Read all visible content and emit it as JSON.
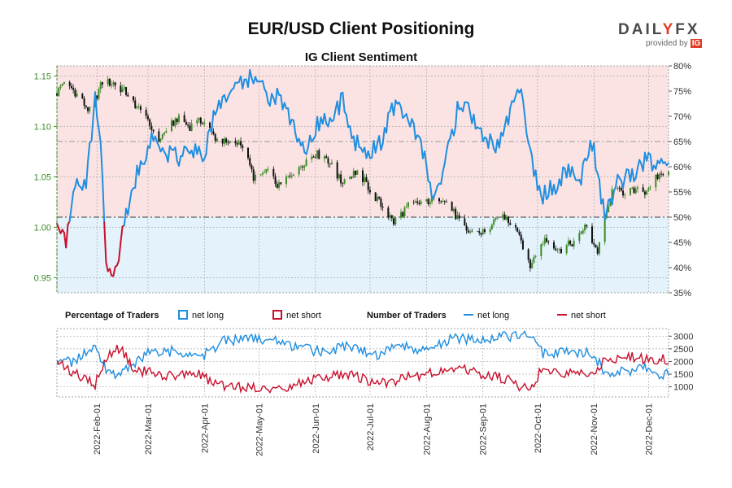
{
  "title": "EUR/USD Client Positioning",
  "subtitle": "IG Client Sentiment",
  "logo": {
    "brand_left": "DAIL",
    "brand_accent": "Y",
    "brand_right": "FX",
    "provided_by": "provided by",
    "partner": "IG"
  },
  "legend": {
    "percentage_heading": "Percentage of Traders",
    "number_heading": "Number of Traders",
    "net_long": "net long",
    "net_short": "net short"
  },
  "colors": {
    "long": "#1f8ee0",
    "short": "#c8102e",
    "long_area": "#e3f2fb",
    "short_area": "#fbe3e3",
    "price_axis": "#3d8b27",
    "bull": "#3d8b27",
    "bear": "#111111"
  },
  "chart_data": [
    {
      "type": "candlestick",
      "name": "EUR/USD price with IG client sentiment",
      "x_tick_labels": [
        "2022-Feb-01",
        "2022-Mar-01",
        "2022-Apr-01",
        "2022-May-01",
        "2022-Jun-01",
        "2022-Jul-01",
        "2022-Aug-01",
        "2022-Sep-01",
        "2022-Oct-01",
        "2022-Nov-01",
        "2022-Dec-01"
      ],
      "x_range": [
        "2022-01-10",
        "2022-12-12"
      ],
      "price_axis": {
        "side": "left",
        "range": [
          0.935,
          1.16
        ],
        "ticks": [
          "0.95",
          "1.00",
          "1.05",
          "1.10",
          "1.15"
        ]
      },
      "sentiment_axis": {
        "side": "right",
        "range": [
          35,
          80
        ],
        "ticks": [
          "35%",
          "40%",
          "45%",
          "50%",
          "55%",
          "60%",
          "65%",
          "70%",
          "75%",
          "80%"
        ],
        "reference_lines": [
          50,
          65
        ]
      },
      "price_keypoints": [
        [
          "2022-01-10",
          1.133
        ],
        [
          "2022-01-14",
          1.146
        ],
        [
          "2022-01-20",
          1.134
        ],
        [
          "2022-01-28",
          1.115
        ],
        [
          "2022-02-04",
          1.144
        ],
        [
          "2022-02-10",
          1.143
        ],
        [
          "2022-02-18",
          1.132
        ],
        [
          "2022-02-24",
          1.117
        ],
        [
          "2022-03-07",
          1.087
        ],
        [
          "2022-03-17",
          1.108
        ],
        [
          "2022-03-24",
          1.1
        ],
        [
          "2022-03-31",
          1.106
        ],
        [
          "2022-04-07",
          1.089
        ],
        [
          "2022-04-14",
          1.082
        ],
        [
          "2022-04-21",
          1.085
        ],
        [
          "2022-04-28",
          1.05
        ],
        [
          "2022-05-06",
          1.054
        ],
        [
          "2022-05-12",
          1.04
        ],
        [
          "2022-05-20",
          1.056
        ],
        [
          "2022-05-31",
          1.073
        ],
        [
          "2022-06-07",
          1.07
        ],
        [
          "2022-06-15",
          1.045
        ],
        [
          "2022-06-24",
          1.056
        ],
        [
          "2022-07-05",
          1.027
        ],
        [
          "2022-07-14",
          1.005
        ],
        [
          "2022-07-22",
          1.021
        ],
        [
          "2022-08-01",
          1.026
        ],
        [
          "2022-08-10",
          1.03
        ],
        [
          "2022-08-23",
          0.996
        ],
        [
          "2022-09-02",
          0.995
        ],
        [
          "2022-09-12",
          1.012
        ],
        [
          "2022-09-20",
          0.998
        ],
        [
          "2022-09-27",
          0.962
        ],
        [
          "2022-10-05",
          0.989
        ],
        [
          "2022-10-13",
          0.976
        ],
        [
          "2022-10-21",
          0.986
        ],
        [
          "2022-10-27",
          1.001
        ],
        [
          "2022-11-03",
          0.976
        ],
        [
          "2022-11-11",
          1.035
        ],
        [
          "2022-11-18",
          1.035
        ],
        [
          "2022-11-29",
          1.036
        ],
        [
          "2022-12-06",
          1.05
        ],
        [
          "2022-12-12",
          1.059
        ]
      ],
      "net_long_percent_keypoints": [
        [
          "2022-01-10",
          50
        ],
        [
          "2022-01-15",
          45
        ],
        [
          "2022-01-20",
          57
        ],
        [
          "2022-01-26",
          57
        ],
        [
          "2022-01-31",
          73
        ],
        [
          "2022-02-03",
          65
        ],
        [
          "2022-02-06",
          40
        ],
        [
          "2022-02-10",
          38
        ],
        [
          "2022-02-17",
          50
        ],
        [
          "2022-02-24",
          60
        ],
        [
          "2022-03-03",
          65
        ],
        [
          "2022-03-10",
          63
        ],
        [
          "2022-03-18",
          62
        ],
        [
          "2022-03-25",
          63
        ],
        [
          "2022-04-01",
          63
        ],
        [
          "2022-04-07",
          71
        ],
        [
          "2022-04-14",
          75
        ],
        [
          "2022-04-21",
          76
        ],
        [
          "2022-04-28",
          78
        ],
        [
          "2022-05-05",
          74
        ],
        [
          "2022-05-12",
          74
        ],
        [
          "2022-05-19",
          69
        ],
        [
          "2022-05-26",
          63
        ],
        [
          "2022-06-02",
          68
        ],
        [
          "2022-06-09",
          70
        ],
        [
          "2022-06-16",
          73
        ],
        [
          "2022-06-23",
          65
        ],
        [
          "2022-06-30",
          62
        ],
        [
          "2022-07-07",
          65
        ],
        [
          "2022-07-14",
          72
        ],
        [
          "2022-07-21",
          71
        ],
        [
          "2022-07-28",
          66
        ],
        [
          "2022-08-04",
          55
        ],
        [
          "2022-08-11",
          60
        ],
        [
          "2022-08-18",
          71
        ],
        [
          "2022-08-25",
          71
        ],
        [
          "2022-09-01",
          66
        ],
        [
          "2022-09-08",
          64
        ],
        [
          "2022-09-15",
          70
        ],
        [
          "2022-09-22",
          77
        ],
        [
          "2022-09-27",
          62
        ],
        [
          "2022-10-03",
          54
        ],
        [
          "2022-10-10",
          56
        ],
        [
          "2022-10-17",
          59
        ],
        [
          "2022-10-24",
          57
        ],
        [
          "2022-10-31",
          65
        ],
        [
          "2022-11-07",
          50
        ],
        [
          "2022-11-14",
          57
        ],
        [
          "2022-11-21",
          58
        ],
        [
          "2022-11-28",
          61
        ],
        [
          "2022-12-05",
          61
        ],
        [
          "2022-12-12",
          60
        ]
      ]
    },
    {
      "type": "line",
      "name": "Number of Traders",
      "x_range": [
        "2022-01-10",
        "2022-12-12"
      ],
      "y_axis": {
        "side": "right",
        "range": [
          600,
          3300
        ],
        "ticks": [
          "1000",
          "1500",
          "2000",
          "2500",
          "3000"
        ]
      },
      "series": [
        {
          "name": "net long",
          "keypoints": [
            [
              "2022-01-10",
              2000
            ],
            [
              "2022-01-20",
              2000
            ],
            [
              "2022-01-31",
              2600
            ],
            [
              "2022-02-07",
              1600
            ],
            [
              "2022-02-14",
              1500
            ],
            [
              "2022-02-21",
              1800
            ],
            [
              "2022-02-28",
              2300
            ],
            [
              "2022-03-14",
              2400
            ],
            [
              "2022-03-28",
              2100
            ],
            [
              "2022-04-04",
              2400
            ],
            [
              "2022-04-11",
              2800
            ],
            [
              "2022-04-25",
              2900
            ],
            [
              "2022-05-09",
              2900
            ],
            [
              "2022-05-23",
              2500
            ],
            [
              "2022-06-06",
              2400
            ],
            [
              "2022-06-20",
              2600
            ],
            [
              "2022-07-04",
              2200
            ],
            [
              "2022-07-18",
              2700
            ],
            [
              "2022-08-01",
              2400
            ],
            [
              "2022-08-15",
              2900
            ],
            [
              "2022-09-01",
              2900
            ],
            [
              "2022-09-15",
              3000
            ],
            [
              "2022-09-27",
              3100
            ],
            [
              "2022-10-04",
              2300
            ],
            [
              "2022-10-18",
              2400
            ],
            [
              "2022-10-31",
              2300
            ],
            [
              "2022-11-07",
              1600
            ],
            [
              "2022-11-21",
              1600
            ],
            [
              "2022-11-28",
              1800
            ],
            [
              "2022-12-05",
              1500
            ],
            [
              "2022-12-12",
              1500
            ]
          ]
        },
        {
          "name": "net short",
          "keypoints": [
            [
              "2022-01-10",
              2000
            ],
            [
              "2022-01-20",
              1500
            ],
            [
              "2022-01-31",
              1100
            ],
            [
              "2022-02-07",
              2300
            ],
            [
              "2022-02-14",
              2500
            ],
            [
              "2022-02-21",
              1700
            ],
            [
              "2022-02-28",
              1600
            ],
            [
              "2022-03-14",
              1400
            ],
            [
              "2022-03-28",
              1600
            ],
            [
              "2022-04-04",
              1200
            ],
            [
              "2022-04-11",
              1000
            ],
            [
              "2022-04-25",
              1000
            ],
            [
              "2022-05-09",
              900
            ],
            [
              "2022-05-23",
              1100
            ],
            [
              "2022-06-06",
              1400
            ],
            [
              "2022-06-20",
              1500
            ],
            [
              "2022-07-04",
              1100
            ],
            [
              "2022-07-18",
              1300
            ],
            [
              "2022-08-01",
              1500
            ],
            [
              "2022-08-15",
              1800
            ],
            [
              "2022-09-01",
              1500
            ],
            [
              "2022-09-15",
              1300
            ],
            [
              "2022-09-27",
              800
            ],
            [
              "2022-10-04",
              1800
            ],
            [
              "2022-10-18",
              1500
            ],
            [
              "2022-10-31",
              1600
            ],
            [
              "2022-11-07",
              2000
            ],
            [
              "2022-11-21",
              2200
            ],
            [
              "2022-11-28",
              2100
            ],
            [
              "2022-12-05",
              2100
            ],
            [
              "2022-12-12",
              2100
            ]
          ]
        }
      ]
    }
  ]
}
